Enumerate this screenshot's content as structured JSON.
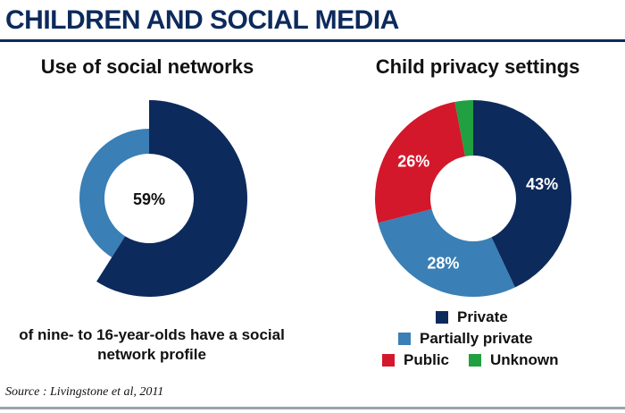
{
  "header": {
    "title": "CHILDREN AND SOCIAL MEDIA"
  },
  "colors": {
    "private": "#0d2a5c",
    "partially_private": "#3a7fb5",
    "public": "#d3182c",
    "unknown": "#20a040"
  },
  "chart_data": [
    {
      "type": "pie",
      "title": "Use of social networks",
      "series": [
        {
          "name": "Have a social network profile",
          "value": 59,
          "color": "#0d2a5c"
        },
        {
          "name": "",
          "value": 41,
          "color": "#3a7fb5"
        }
      ],
      "center_label": "59%",
      "caption": "of nine- to 16-year-olds have a social network profile"
    },
    {
      "type": "pie",
      "title": "Child privacy settings",
      "series": [
        {
          "name": "Private",
          "value": 43,
          "label": "43%",
          "color": "#0d2a5c"
        },
        {
          "name": "Partially private",
          "value": 28,
          "label": "28%",
          "color": "#3a7fb5"
        },
        {
          "name": "Public",
          "value": 26,
          "label": "26%",
          "color": "#d3182c"
        },
        {
          "name": "Unknown",
          "value": 3,
          "label": "",
          "color": "#20a040"
        }
      ],
      "legend": [
        "Private",
        "Partially private",
        "Public",
        "Unknown"
      ]
    }
  ],
  "source": "Source : Livingstone et al, 2011"
}
